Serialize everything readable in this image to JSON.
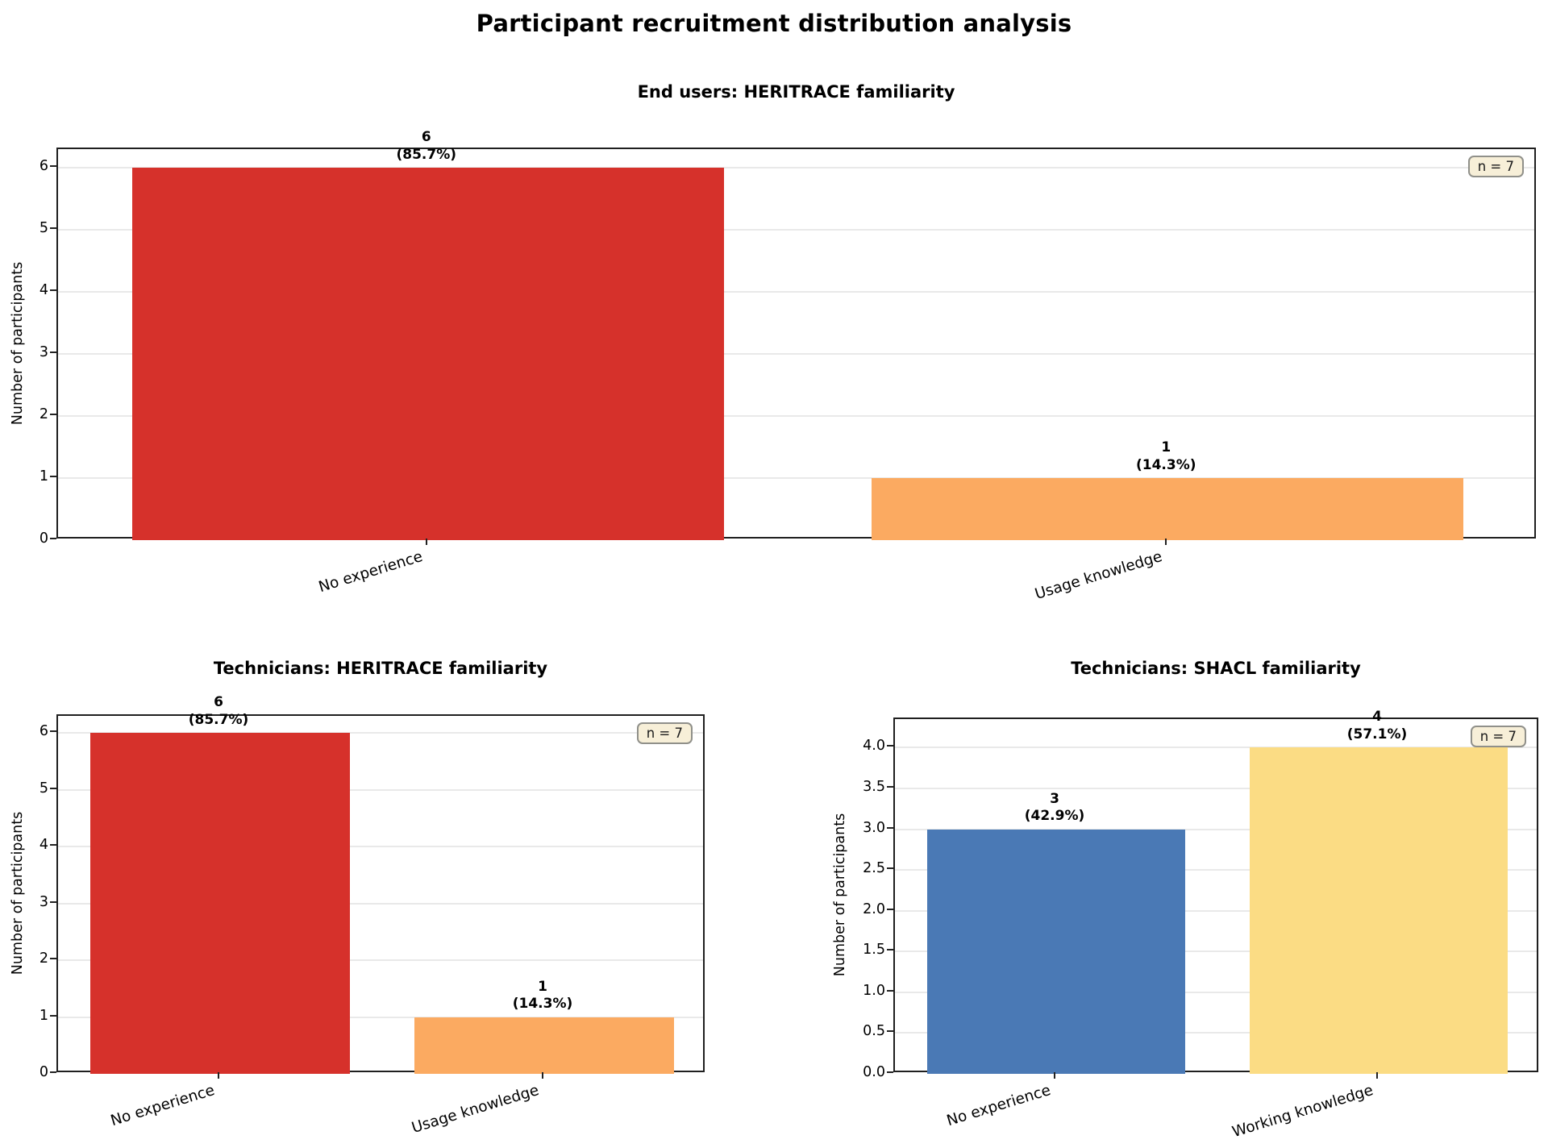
{
  "page": {
    "suptitle": "Participant recruitment distribution analysis"
  },
  "colors": {
    "red": "#d6312b",
    "orange": "#fbaa61",
    "blue": "#4a79b5",
    "yellow": "#fbdc84",
    "badge_bg": "#f7efd8",
    "badge_border": "#90908a",
    "grid": "#e9e9e9",
    "spine": "#1f1f1f"
  },
  "chart_data": [
    {
      "type": "bar",
      "title": "End users: HERITRACE familiarity",
      "categories": [
        "No experience",
        "Usage knowledge"
      ],
      "values": [
        6,
        1
      ],
      "value_labels": [
        "6",
        "1"
      ],
      "pct_labels": [
        "(85.7%)",
        "(14.3%)"
      ],
      "bar_colors": [
        "#d6312b",
        "#fbaa61"
      ],
      "n_badge": "n = 7",
      "ylabel": "Number of participants",
      "ylim": [
        0,
        6.3
      ],
      "yticks": [
        0,
        1,
        2,
        3,
        4,
        5,
        6
      ],
      "ytick_labels": [
        "0",
        "1",
        "2",
        "3",
        "4",
        "5",
        "6"
      ],
      "grid": true,
      "legend": null
    },
    {
      "type": "bar",
      "title": "Technicians: HERITRACE familiarity",
      "categories": [
        "No experience",
        "Usage knowledge"
      ],
      "values": [
        6,
        1
      ],
      "value_labels": [
        "6",
        "1"
      ],
      "pct_labels": [
        "(85.7%)",
        "(14.3%)"
      ],
      "bar_colors": [
        "#d6312b",
        "#fbaa61"
      ],
      "n_badge": "n = 7",
      "ylabel": "Number of participants",
      "ylim": [
        0,
        6.3
      ],
      "yticks": [
        0,
        1,
        2,
        3,
        4,
        5,
        6
      ],
      "ytick_labels": [
        "0",
        "1",
        "2",
        "3",
        "4",
        "5",
        "6"
      ],
      "grid": true,
      "legend": null
    },
    {
      "type": "bar",
      "title": "Technicians: SHACL familiarity",
      "categories": [
        "No experience",
        "Working knowledge"
      ],
      "values": [
        3,
        4
      ],
      "value_labels": [
        "3",
        "4"
      ],
      "pct_labels": [
        "(42.9%)",
        "(57.1%)"
      ],
      "bar_colors": [
        "#4a79b5",
        "#fbdc84"
      ],
      "n_badge": "n = 7",
      "ylabel": "Number of participants",
      "ylim": [
        0,
        4.35
      ],
      "yticks": [
        0,
        0.5,
        1,
        1.5,
        2,
        2.5,
        3,
        3.5,
        4
      ],
      "ytick_labels": [
        "0.0",
        "0.5",
        "1.0",
        "1.5",
        "2.0",
        "2.5",
        "3.0",
        "3.5",
        "4.0"
      ],
      "grid": true,
      "legend": null
    }
  ]
}
